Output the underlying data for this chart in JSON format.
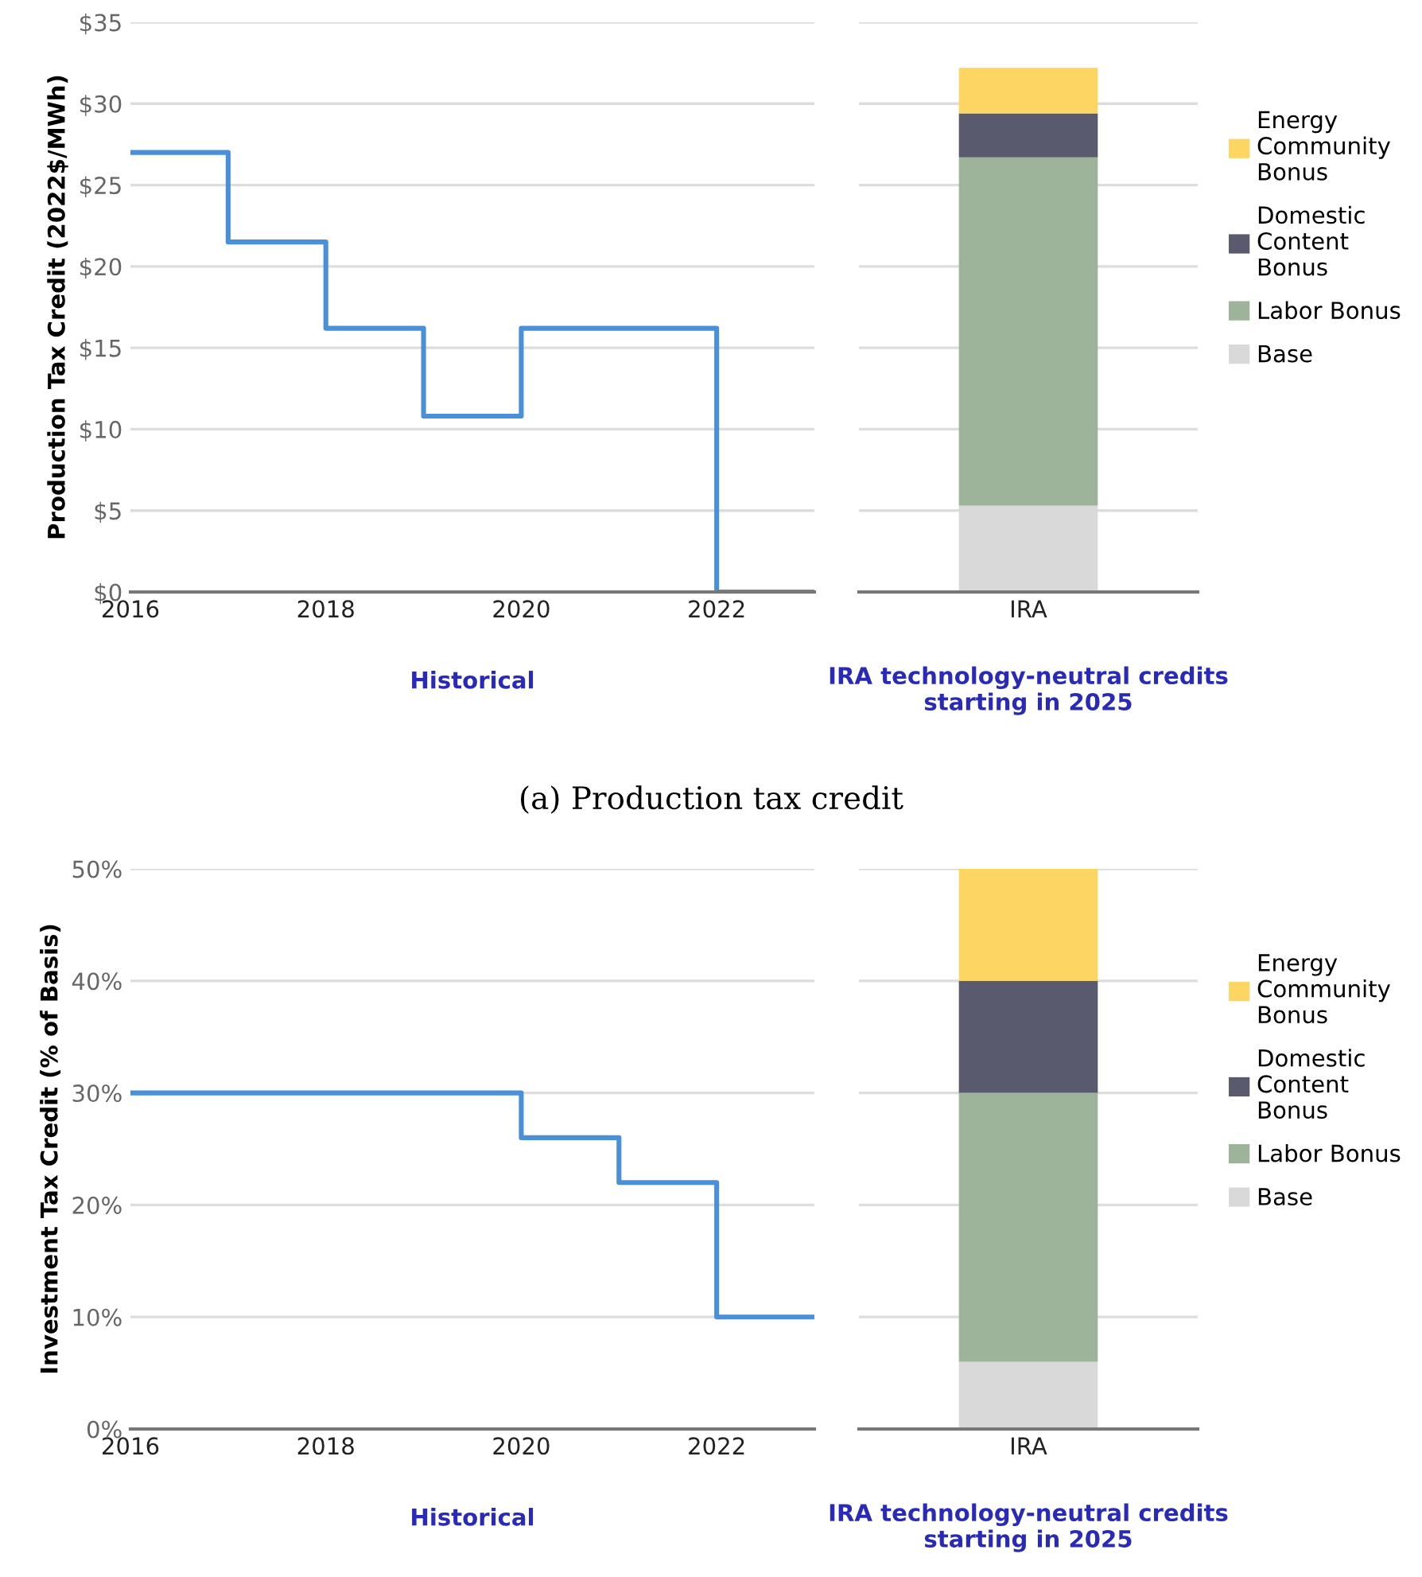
{
  "chart_data": [
    {
      "type": "step",
      "x": [
        2016,
        2017,
        2018,
        2019,
        2020,
        2021,
        2022,
        2023
      ],
      "series": [
        {
          "color": "#4a90d9",
          "values": [
            27,
            21.5,
            16.2,
            10.8,
            16.2,
            16.2,
            0,
            0
          ]
        }
      ],
      "ylabel": "Production Tax Credit (2022$/MWh)",
      "xlabel": "Historical",
      "xlim": [
        2016,
        2023
      ],
      "xticks": [
        2016,
        2018,
        2020,
        2022
      ],
      "ylim": [
        0,
        35
      ],
      "yticks": [
        {
          "value": 0,
          "label": "$0"
        },
        {
          "value": 5,
          "label": "$5"
        },
        {
          "value": 10,
          "label": "$10"
        },
        {
          "value": 15,
          "label": "$15"
        },
        {
          "value": 20,
          "label": "$20"
        },
        {
          "value": 25,
          "label": "$25"
        },
        {
          "value": 30,
          "label": "$30"
        },
        {
          "value": 35,
          "label": "$35"
        }
      ],
      "grid": "y",
      "annotations": [
        "(a) Production tax credit"
      ]
    },
    {
      "type": "bar",
      "stacked": true,
      "categories": [
        "IRA"
      ],
      "xlabel": "IRA technology-neutral credits\nstarting in 2025",
      "series": [
        {
          "name": "Base",
          "color": "#d9d9d9",
          "values": [
            5.3
          ]
        },
        {
          "name": "Labor Bonus",
          "color": "#9db39a",
          "values": [
            21.4
          ]
        },
        {
          "name": "Domestic\nContent\nBonus",
          "color": "#5a5a6e",
          "values": [
            2.7
          ]
        },
        {
          "name": "Energy\nCommunity\nBonus",
          "color": "#fdd563",
          "values": [
            2.8
          ]
        }
      ],
      "ylim": [
        0,
        35
      ],
      "yticks": [
        0,
        5,
        10,
        15,
        20,
        25,
        30,
        35
      ],
      "tick_labels": "x",
      "grid": "y",
      "legend": "right"
    },
    {
      "type": "step",
      "x": [
        2016,
        2017,
        2018,
        2019,
        2020,
        2021,
        2022,
        2023
      ],
      "series": [
        {
          "color": "#4a90d9",
          "values": [
            30,
            30,
            30,
            30,
            26,
            22,
            10,
            10
          ]
        }
      ],
      "ylabel": "Investment Tax Credit (% of Basis)",
      "xlabel": "Historical",
      "xlim": [
        2016,
        2023
      ],
      "xticks": [
        2016,
        2018,
        2020,
        2022
      ],
      "ylim": [
        0,
        50
      ],
      "yticks": [
        {
          "value": 0,
          "label": "0%"
        },
        {
          "value": 10,
          "label": "10%"
        },
        {
          "value": 20,
          "label": "20%"
        },
        {
          "value": 30,
          "label": "30%"
        },
        {
          "value": 40,
          "label": "40%"
        },
        {
          "value": 50,
          "label": "50%"
        }
      ],
      "grid": "y"
    },
    {
      "type": "bar",
      "stacked": true,
      "categories": [
        "IRA"
      ],
      "xlabel": "IRA technology-neutral credits\nstarting in 2025",
      "series": [
        {
          "name": "Base",
          "color": "#d9d9d9",
          "values": [
            6
          ]
        },
        {
          "name": "Labor Bonus",
          "color": "#9db39a",
          "values": [
            24
          ]
        },
        {
          "name": "Domestic\nContent\nBonus",
          "color": "#5a5a6e",
          "values": [
            10
          ]
        },
        {
          "name": "Energy\nCommunity\nBonus",
          "color": "#fdd563",
          "values": [
            10
          ]
        }
      ],
      "ylim": [
        0,
        50
      ],
      "yticks": [
        0,
        10,
        20,
        30,
        40,
        50
      ],
      "tick_labels": "x",
      "grid": "y",
      "legend": "right"
    }
  ]
}
